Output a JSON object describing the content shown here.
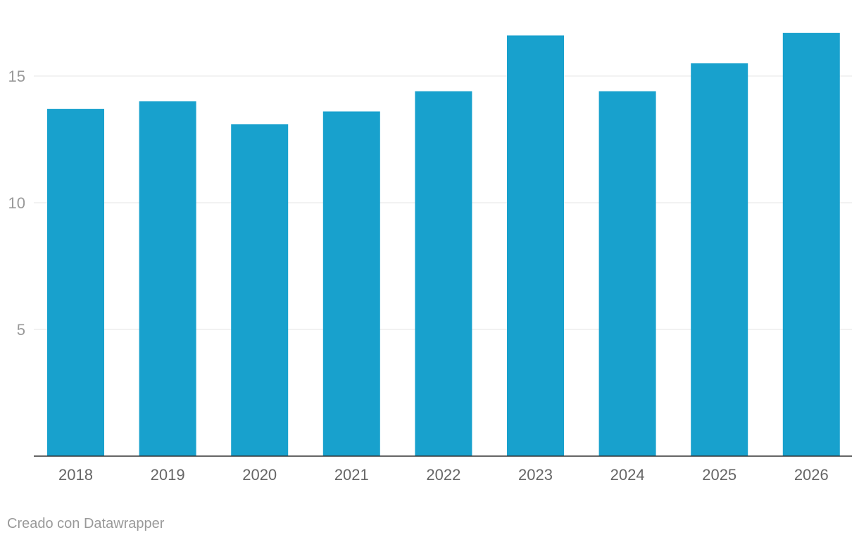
{
  "chart_data": {
    "type": "bar",
    "categories": [
      "2018",
      "2019",
      "2020",
      "2021",
      "2022",
      "2023",
      "2024",
      "2025",
      "2026"
    ],
    "values": [
      13.7,
      14.0,
      13.1,
      13.6,
      14.4,
      16.6,
      14.4,
      15.5,
      16.7
    ],
    "ylim": [
      0,
      17.5
    ],
    "yticks": [
      5,
      10,
      15
    ],
    "grid": true,
    "bar_color": "#18a1cd",
    "title": "",
    "xlabel": "",
    "ylabel": ""
  },
  "footer": {
    "credit": "Creado con Datawrapper"
  }
}
